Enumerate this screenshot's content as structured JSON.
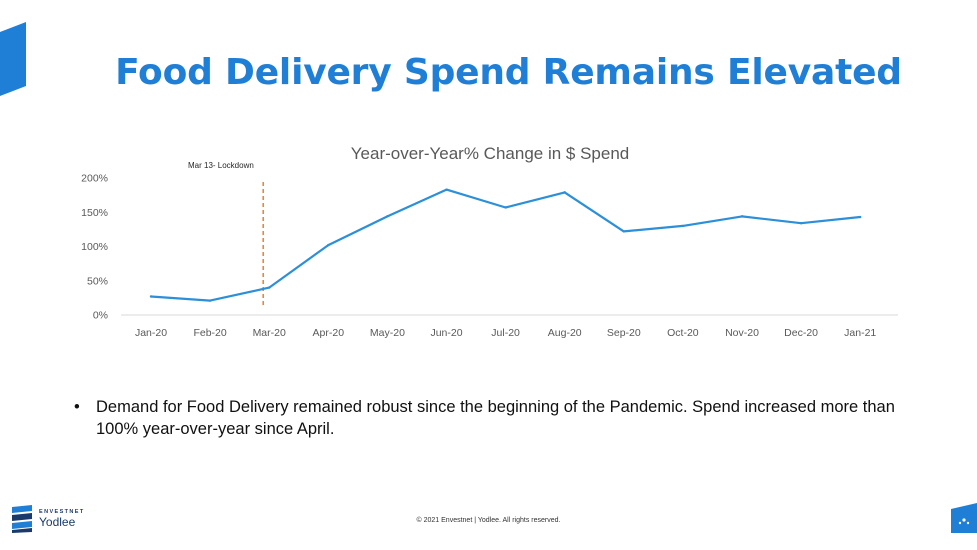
{
  "slide": {
    "title": "Food Delivery Spend Remains Elevated",
    "bullet": "Demand for Food Delivery remained robust since the beginning of the Pandemic. Spend increased more than 100% year-over-year since April.",
    "footer": "© 2021 Envestnet | Yodlee. All rights reserved.",
    "brand_top": "ENVESTNET",
    "brand_bottom": "Yodlee"
  },
  "colors": {
    "title": "#1f7fd6",
    "line": "#2b8fd9",
    "lockdown": "#ed7d31",
    "brand": "#1a3a6b"
  },
  "icons": {
    "bullet": "bullet-dot-icon",
    "brand": "yodlee-logo-icon"
  },
  "chart_data": {
    "type": "line",
    "title": "Year-over-Year% Change in $ Spend",
    "xlabel": "",
    "ylabel": "",
    "categories": [
      "Jan-20",
      "Feb-20",
      "Mar-20",
      "Apr-20",
      "May-20",
      "Jun-20",
      "Jul-20",
      "Aug-20",
      "Sep-20",
      "Oct-20",
      "Nov-20",
      "Dec-20",
      "Jan-21"
    ],
    "values": [
      27,
      21,
      40,
      102,
      144,
      183,
      157,
      179,
      122,
      130,
      144,
      134,
      143
    ],
    "ylim": [
      0,
      200
    ],
    "yticks": [
      "0%",
      "50%",
      "100%",
      "150%",
      "200%"
    ],
    "ytick_values": [
      0,
      50,
      100,
      150,
      200
    ],
    "grid": false,
    "legend": "none",
    "annotation": {
      "label": "Mar 13- Lockdown",
      "x_value": "Mar-20"
    }
  }
}
